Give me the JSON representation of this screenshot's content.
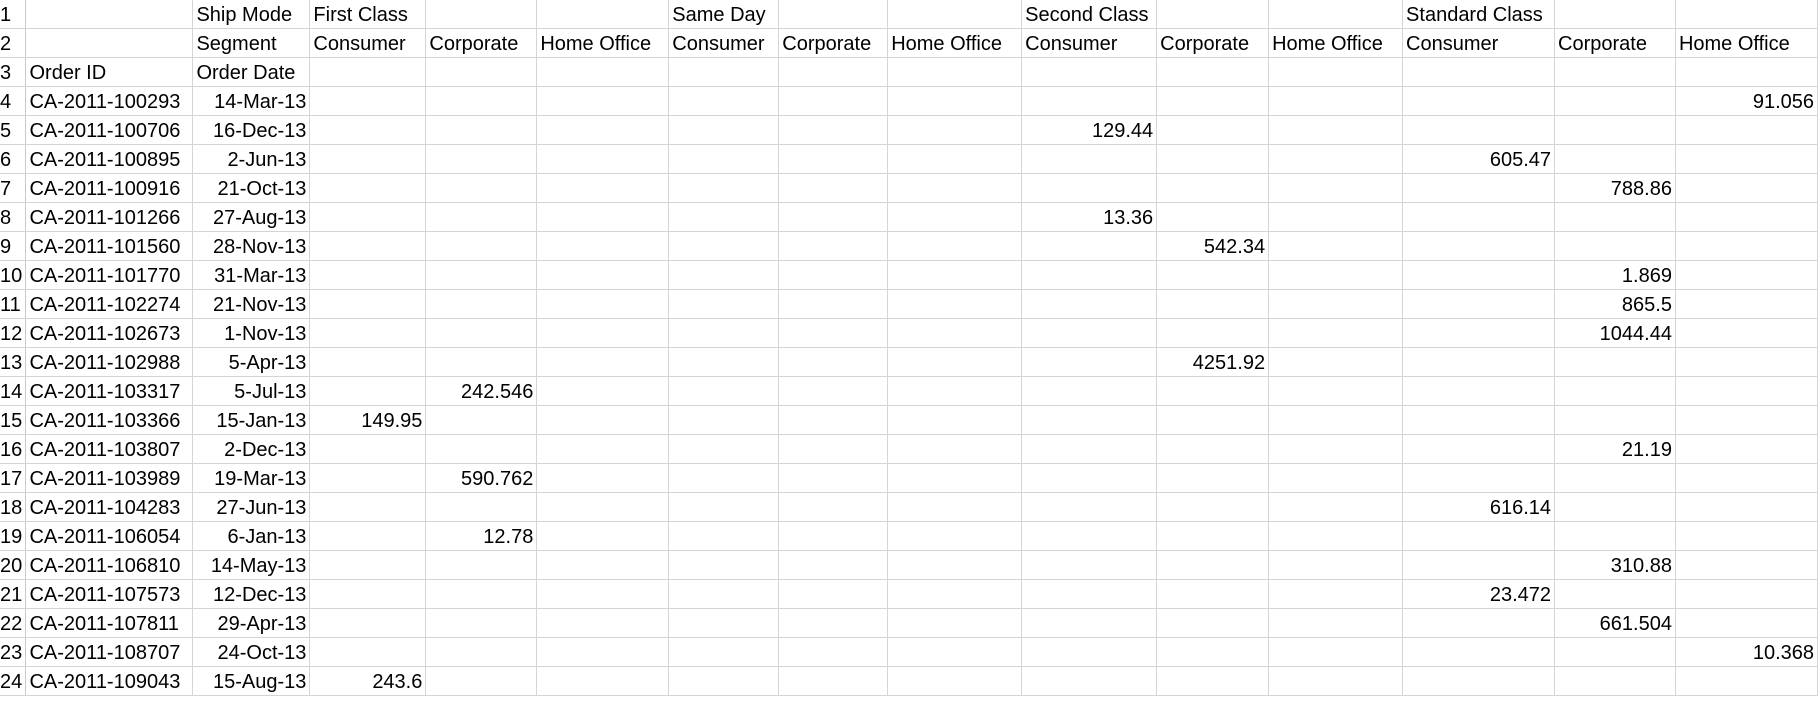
{
  "spreadsheet": {
    "header_rows": [
      {
        "row_number": "1",
        "cells": [
          "",
          "Ship Mode",
          "First Class",
          "",
          "",
          "Same Day",
          "",
          "",
          "Second Class",
          "",
          "",
          "Standard Class",
          "",
          ""
        ]
      },
      {
        "row_number": "2",
        "cells": [
          "",
          "Segment",
          "Consumer",
          "Corporate",
          "Home Office",
          "Consumer",
          "Corporate",
          "Home Office",
          "Consumer",
          "Corporate",
          "Home Office",
          "Consumer",
          "Corporate",
          "Home Office"
        ]
      },
      {
        "row_number": "3",
        "cells": [
          "Order ID",
          "Order Date",
          "",
          "",
          "",
          "",
          "",
          "",
          "",
          "",
          "",
          "",
          "",
          ""
        ]
      }
    ],
    "data_rows": [
      {
        "row_number": "4",
        "order_id": "CA-2011-100293",
        "order_date": "14-Mar-13",
        "values": [
          "",
          "",
          "",
          "",
          "",
          "",
          "",
          "",
          "",
          "",
          "",
          "91.056"
        ]
      },
      {
        "row_number": "5",
        "order_id": "CA-2011-100706",
        "order_date": "16-Dec-13",
        "values": [
          "",
          "",
          "",
          "",
          "",
          "",
          "129.44",
          "",
          "",
          "",
          "",
          ""
        ]
      },
      {
        "row_number": "6",
        "order_id": "CA-2011-100895",
        "order_date": "2-Jun-13",
        "values": [
          "",
          "",
          "",
          "",
          "",
          "",
          "",
          "",
          "",
          "605.47",
          "",
          ""
        ]
      },
      {
        "row_number": "7",
        "order_id": "CA-2011-100916",
        "order_date": "21-Oct-13",
        "values": [
          "",
          "",
          "",
          "",
          "",
          "",
          "",
          "",
          "",
          "",
          "788.86",
          ""
        ]
      },
      {
        "row_number": "8",
        "order_id": "CA-2011-101266",
        "order_date": "27-Aug-13",
        "values": [
          "",
          "",
          "",
          "",
          "",
          "",
          "13.36",
          "",
          "",
          "",
          "",
          ""
        ]
      },
      {
        "row_number": "9",
        "order_id": "CA-2011-101560",
        "order_date": "28-Nov-13",
        "values": [
          "",
          "",
          "",
          "",
          "",
          "",
          "",
          "542.34",
          "",
          "",
          "",
          ""
        ]
      },
      {
        "row_number": "10",
        "order_id": "CA-2011-101770",
        "order_date": "31-Mar-13",
        "values": [
          "",
          "",
          "",
          "",
          "",
          "",
          "",
          "",
          "",
          "",
          "1.869",
          ""
        ]
      },
      {
        "row_number": "11",
        "order_id": "CA-2011-102274",
        "order_date": "21-Nov-13",
        "values": [
          "",
          "",
          "",
          "",
          "",
          "",
          "",
          "",
          "",
          "",
          "865.5",
          ""
        ]
      },
      {
        "row_number": "12",
        "order_id": "CA-2011-102673",
        "order_date": "1-Nov-13",
        "values": [
          "",
          "",
          "",
          "",
          "",
          "",
          "",
          "",
          "",
          "",
          "1044.44",
          ""
        ]
      },
      {
        "row_number": "13",
        "order_id": "CA-2011-102988",
        "order_date": "5-Apr-13",
        "values": [
          "",
          "",
          "",
          "",
          "",
          "",
          "",
          "4251.92",
          "",
          "",
          "",
          ""
        ]
      },
      {
        "row_number": "14",
        "order_id": "CA-2011-103317",
        "order_date": "5-Jul-13",
        "values": [
          "",
          "242.546",
          "",
          "",
          "",
          "",
          "",
          "",
          "",
          "",
          "",
          ""
        ]
      },
      {
        "row_number": "15",
        "order_id": "CA-2011-103366",
        "order_date": "15-Jan-13",
        "values": [
          "149.95",
          "",
          "",
          "",
          "",
          "",
          "",
          "",
          "",
          "",
          "",
          ""
        ]
      },
      {
        "row_number": "16",
        "order_id": "CA-2011-103807",
        "order_date": "2-Dec-13",
        "values": [
          "",
          "",
          "",
          "",
          "",
          "",
          "",
          "",
          "",
          "",
          "21.19",
          ""
        ]
      },
      {
        "row_number": "17",
        "order_id": "CA-2011-103989",
        "order_date": "19-Mar-13",
        "values": [
          "",
          "590.762",
          "",
          "",
          "",
          "",
          "",
          "",
          "",
          "",
          "",
          ""
        ]
      },
      {
        "row_number": "18",
        "order_id": "CA-2011-104283",
        "order_date": "27-Jun-13",
        "values": [
          "",
          "",
          "",
          "",
          "",
          "",
          "",
          "",
          "",
          "616.14",
          "",
          ""
        ]
      },
      {
        "row_number": "19",
        "order_id": "CA-2011-106054",
        "order_date": "6-Jan-13",
        "values": [
          "",
          "12.78",
          "",
          "",
          "",
          "",
          "",
          "",
          "",
          "",
          "",
          ""
        ]
      },
      {
        "row_number": "20",
        "order_id": "CA-2011-106810",
        "order_date": "14-May-13",
        "values": [
          "",
          "",
          "",
          "",
          "",
          "",
          "",
          "",
          "",
          "",
          "310.88",
          ""
        ]
      },
      {
        "row_number": "21",
        "order_id": "CA-2011-107573",
        "order_date": "12-Dec-13",
        "values": [
          "",
          "",
          "",
          "",
          "",
          "",
          "",
          "",
          "",
          "23.472",
          "",
          ""
        ]
      },
      {
        "row_number": "22",
        "order_id": "CA-2011-107811",
        "order_date": "29-Apr-13",
        "values": [
          "",
          "",
          "",
          "",
          "",
          "",
          "",
          "",
          "",
          "",
          "661.504",
          ""
        ]
      },
      {
        "row_number": "23",
        "order_id": "CA-2011-108707",
        "order_date": "24-Oct-13",
        "values": [
          "",
          "",
          "",
          "",
          "",
          "",
          "",
          "",
          "",
          "",
          "",
          "10.368"
        ]
      },
      {
        "row_number": "24",
        "order_id": "CA-2011-109043",
        "order_date": "15-Aug-13",
        "values": [
          "243.6",
          "",
          "",
          "",
          "",
          "",
          "",
          "",
          "",
          "",
          "",
          ""
        ]
      }
    ]
  },
  "colors": {
    "gridline": "#d4d4d4",
    "background": "#ffffff",
    "text": "#000000"
  }
}
